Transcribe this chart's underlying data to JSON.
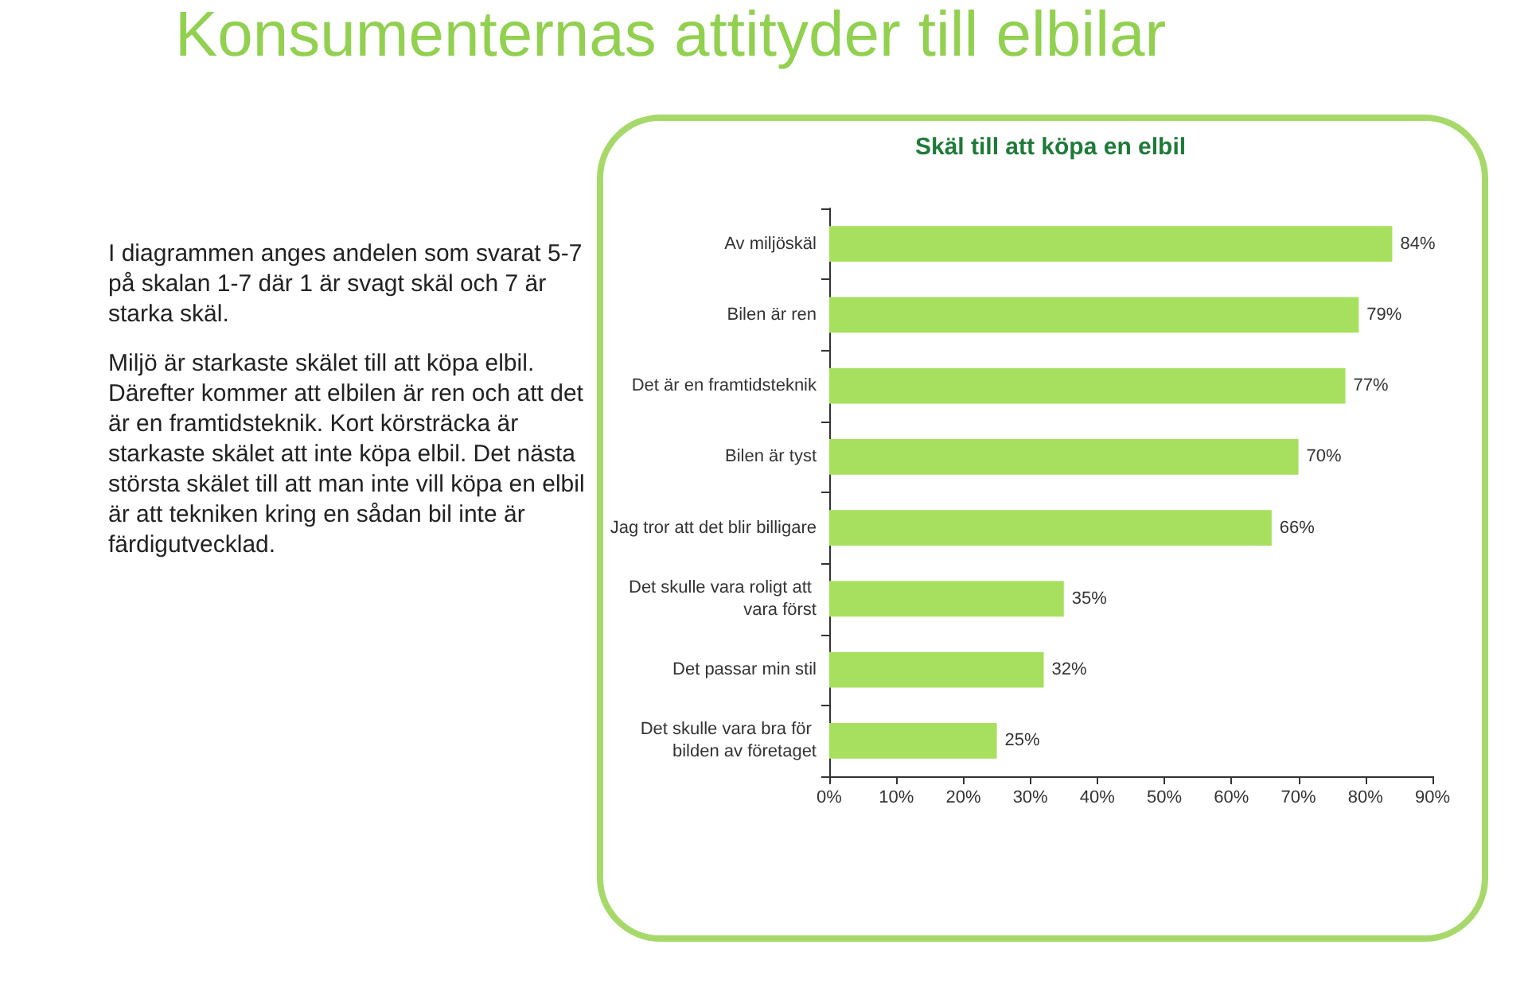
{
  "chart_data": {
    "type": "bar",
    "orientation": "horizontal",
    "title": "Skäl till att köpa en elbil",
    "categories": [
      "Av miljöskäl",
      "Bilen är ren",
      "Det är en framtidsteknik",
      "Bilen är tyst",
      "Jag tror att det blir billigare",
      "Det skulle vara roligt att vara först",
      "Det passar min stil",
      "Det skulle vara bra för bilden av företaget"
    ],
    "values": [
      84,
      79,
      77,
      70,
      66,
      35,
      32,
      25
    ],
    "value_labels": [
      "84%",
      "79%",
      "77%",
      "70%",
      "66%",
      "35%",
      "32%",
      "25%"
    ],
    "color": "#a6e05e",
    "xlim": [
      0,
      90
    ],
    "xticks": [
      {
        "value": 0,
        "label": "0%"
      },
      {
        "value": 10,
        "label": "10%"
      },
      {
        "value": 20,
        "label": "20%"
      },
      {
        "value": 30,
        "label": "30%"
      },
      {
        "value": 40,
        "label": "40%"
      },
      {
        "value": 50,
        "label": "50%"
      },
      {
        "value": 60,
        "label": "60%"
      },
      {
        "value": 70,
        "label": "70%"
      },
      {
        "value": 80,
        "label": "80%"
      },
      {
        "value": 90,
        "label": "90%"
      }
    ],
    "grid": false,
    "annotations": [
      "Konsumenternas attityder till elbilar",
      "I diagrammen anges andelen som svarat 5-7 på skalan 1-7 där 1 är svagt skäl och 7 är starka skäl.",
      "Miljö är starkaste skälet till att köpa elbil. Därefter kommer att elbilen är ren och att det är en framtidsteknik. Kort körsträcka är starkaste skälet att inte köpa elbil. Det nästa största skälet till att man inte vill köpa en elbil är att tekniken kring en sådan bil inte är färdigutvecklad."
    ]
  }
}
